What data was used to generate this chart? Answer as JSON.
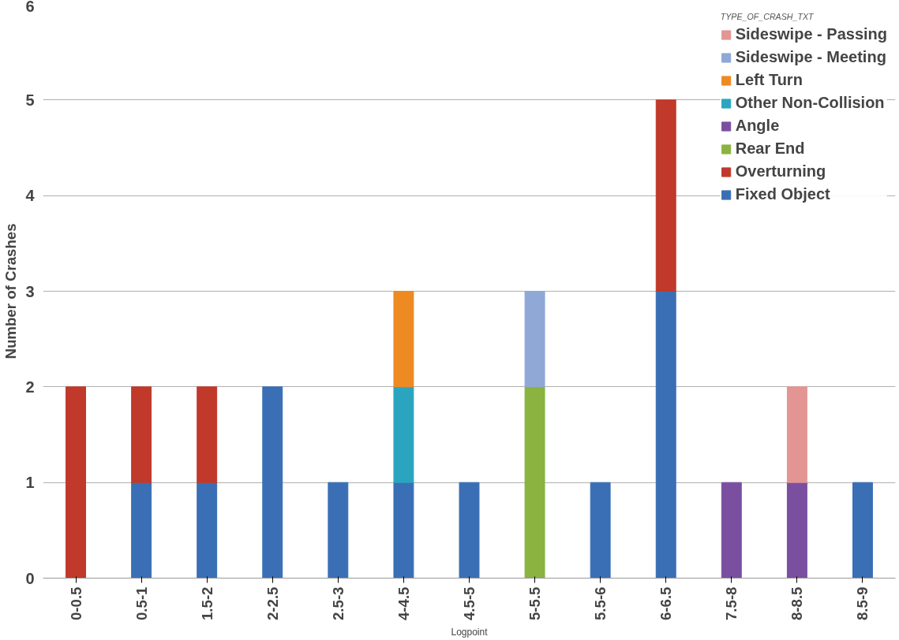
{
  "chart_data": {
    "type": "bar",
    "stacked": true,
    "xlabel": "Logpoint",
    "ylabel": "Number of Crashes",
    "legend_title": "TYPE_OF_CRASH_TXT",
    "categories": [
      "0-0.5",
      "0.5-1",
      "1.5-2",
      "2-2.5",
      "2.5-3",
      "4-4.5",
      "4.5-5",
      "5-5.5",
      "5.5-6",
      "6-6.5",
      "7.5-8",
      "8-8.5",
      "8.5-9"
    ],
    "series": [
      {
        "name": "Fixed Object",
        "color": "#3a6fb5",
        "values": [
          null,
          1,
          1,
          2,
          1,
          1,
          1,
          null,
          1,
          3,
          null,
          null,
          1
        ]
      },
      {
        "name": "Overturning",
        "color": "#c0392b",
        "values": [
          2,
          1,
          1,
          null,
          null,
          null,
          null,
          null,
          null,
          2,
          null,
          null,
          null
        ]
      },
      {
        "name": "Rear End",
        "color": "#8ab33f",
        "values": [
          null,
          null,
          null,
          null,
          null,
          null,
          null,
          2,
          null,
          null,
          null,
          null,
          null
        ]
      },
      {
        "name": "Angle",
        "color": "#7a4fa0",
        "values": [
          null,
          null,
          null,
          null,
          null,
          null,
          null,
          null,
          null,
          null,
          1,
          1,
          null
        ]
      },
      {
        "name": "Other Non-Collision",
        "color": "#2ba5bf",
        "values": [
          null,
          null,
          null,
          null,
          null,
          1,
          null,
          null,
          null,
          null,
          null,
          null,
          null
        ]
      },
      {
        "name": "Left Turn",
        "color": "#ee8a22",
        "values": [
          null,
          null,
          null,
          null,
          null,
          1,
          null,
          null,
          null,
          null,
          null,
          null,
          null
        ]
      },
      {
        "name": "Sideswipe - Meeting",
        "color": "#8fa8d6",
        "values": [
          null,
          null,
          null,
          null,
          null,
          null,
          null,
          1,
          null,
          null,
          null,
          null,
          null
        ]
      },
      {
        "name": "Sideswipe - Passing",
        "color": "#e39593",
        "values": [
          null,
          null,
          null,
          null,
          null,
          null,
          null,
          null,
          null,
          null,
          null,
          1,
          null
        ]
      }
    ],
    "ylim": [
      0,
      6
    ],
    "yticks": [
      0,
      1,
      2,
      3,
      4,
      5,
      6
    ],
    "grid": "y",
    "legend": "top right"
  }
}
